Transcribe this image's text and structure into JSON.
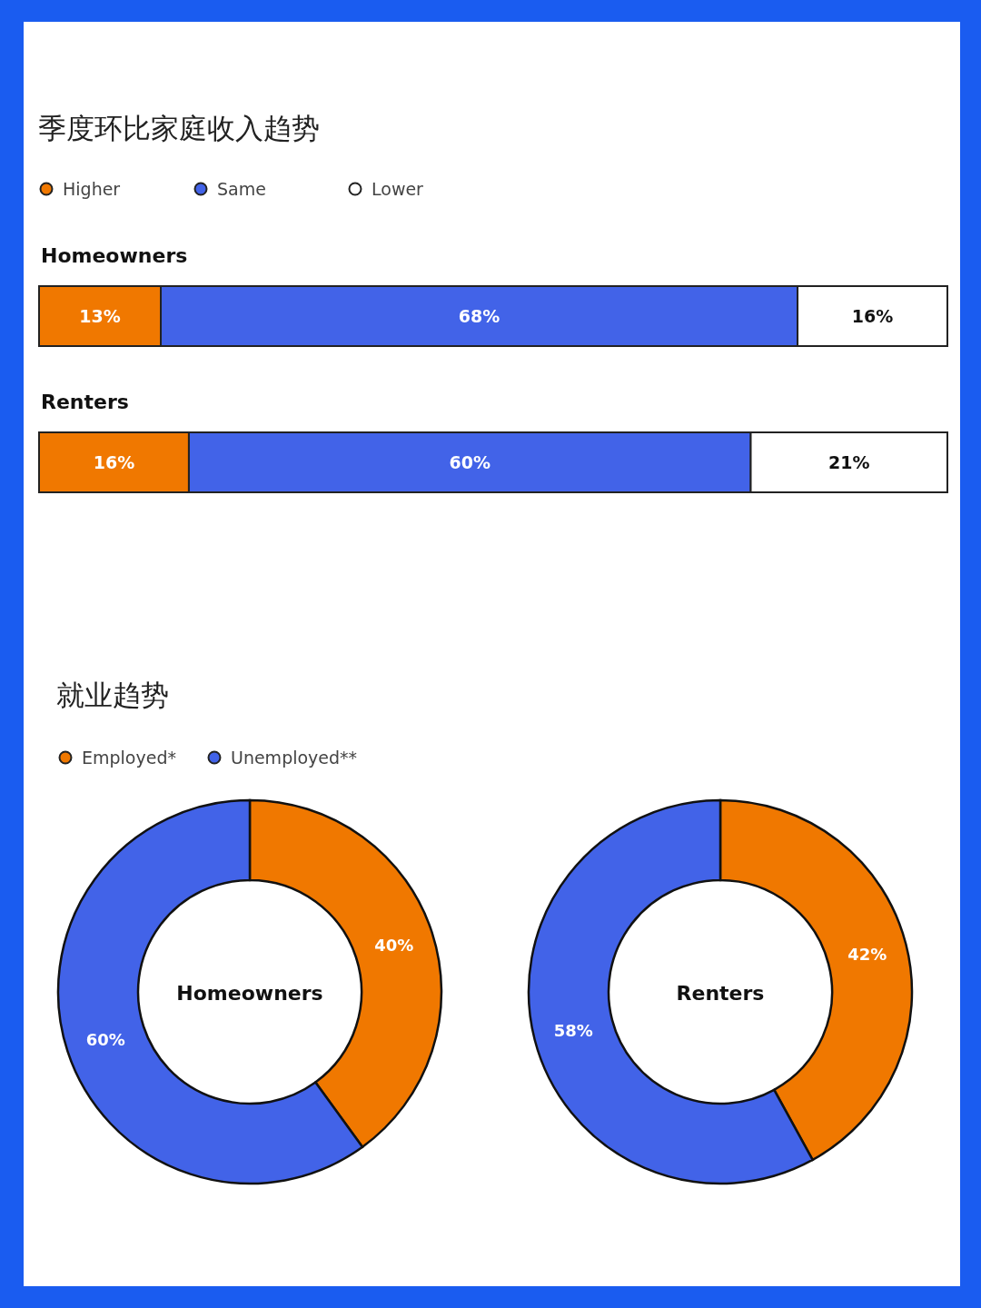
{
  "chart_data": [
    {
      "type": "bar",
      "orientation": "horizontal",
      "stacked": true,
      "title": "季度环比家庭收入趋势",
      "categories": [
        "Homeowners",
        "Renters"
      ],
      "legend": "top left",
      "marker": "circle",
      "series": [
        {
          "name": "Higher",
          "color": "#f07800",
          "values": [
            13,
            16
          ],
          "value_labels": [
            "13%",
            "16%"
          ]
        },
        {
          "name": "Same",
          "color": "#4263e8",
          "values": [
            68,
            60
          ],
          "value_labels": [
            "68%",
            "60%"
          ]
        },
        {
          "name": "Lower",
          "color": "#ffffff",
          "values": [
            16,
            21
          ],
          "value_labels": [
            "16%",
            "21%"
          ]
        }
      ]
    },
    {
      "type": "donut",
      "title": "就业趋势",
      "legend": "top left",
      "categories": [
        "Employed*",
        "Unemployed**"
      ],
      "colors": [
        "#f07800",
        "#4263e8"
      ],
      "series": [
        {
          "name": "Homeowners",
          "values": [
            40,
            60
          ],
          "value_labels": [
            "40%",
            "60%"
          ]
        },
        {
          "name": "Renters",
          "values": [
            42,
            58
          ],
          "value_labels": [
            "42%",
            "58%"
          ]
        }
      ]
    }
  ]
}
